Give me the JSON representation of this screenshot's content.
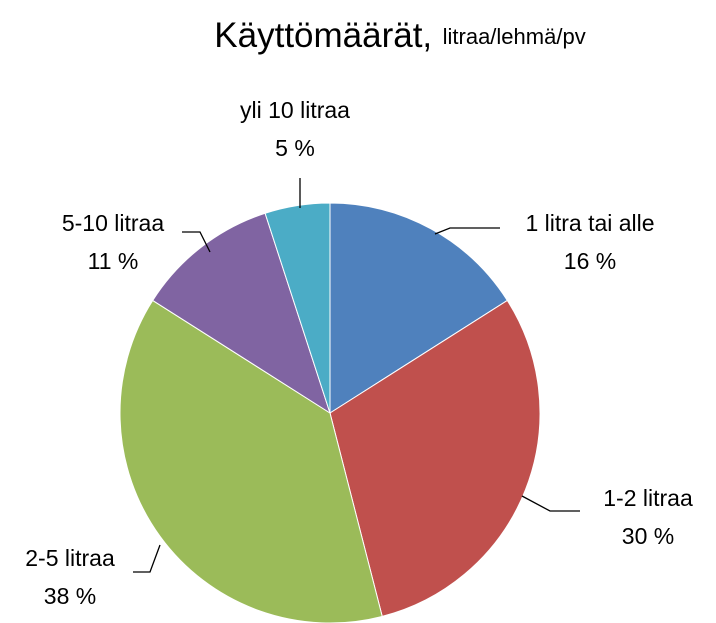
{
  "chart_data": {
    "type": "pie",
    "title": "Käyttömäärät,",
    "subtitle": "litraa/lehmä/pv",
    "categories": [
      "1 litra tai alle",
      "1-2 litraa",
      "2-5 litraa",
      "5-10 litraa",
      "yli 10 litraa"
    ],
    "values": [
      16,
      30,
      38,
      11,
      5
    ],
    "value_labels": [
      "16 %",
      "30 %",
      "38 %",
      "11 %",
      "5 %"
    ],
    "colors": [
      "#4f81bd",
      "#c0504d",
      "#9bbb59",
      "#8064a2",
      "#4bacc6"
    ]
  }
}
